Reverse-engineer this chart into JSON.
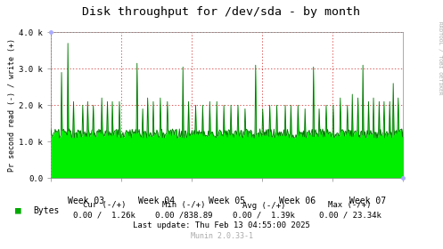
{
  "title": "Disk throughput for /dev/sda - by month",
  "ylabel": "Pr second read (-) / write (+)",
  "xlabel_ticks": [
    "Week 03",
    "Week 04",
    "Week 05",
    "Week 06",
    "Week 07"
  ],
  "ylim": [
    0,
    4000
  ],
  "yticks": [
    0,
    1000,
    2000,
    3000,
    4000
  ],
  "ytick_labels": [
    "0.0",
    "1.0 k",
    "2.0 k",
    "3.0 k",
    "4.0 k"
  ],
  "bg_color": "#ffffff",
  "plot_bg_color": "#ffffff",
  "line_color_fill": "#00ee00",
  "line_color_edge": "#007700",
  "title_color": "#000000",
  "sidebar_text": "RRDTOOL / TOBI OETIKER",
  "legend_label": "Bytes",
  "legend_box_color": "#00aa00",
  "cur_label": "Cur (-/+)",
  "min_label": "Min (-/+)",
  "avg_label": "Avg (-/+)",
  "max_label": "Max (-/+)",
  "cur_val": "0.00 /  1.26k",
  "min_val": "0.00 /838.89",
  "avg_val": "0.00 /  1.39k",
  "max_val": "0.00 / 23.34k",
  "last_update": "Last update: Thu Feb 13 04:55:00 2025",
  "munin_version": "Munin 2.0.33-1",
  "num_points": 500,
  "base_min": 1100,
  "base_max": 1350,
  "grid_color": "#cc0000",
  "dot_color": "#aaaaff"
}
